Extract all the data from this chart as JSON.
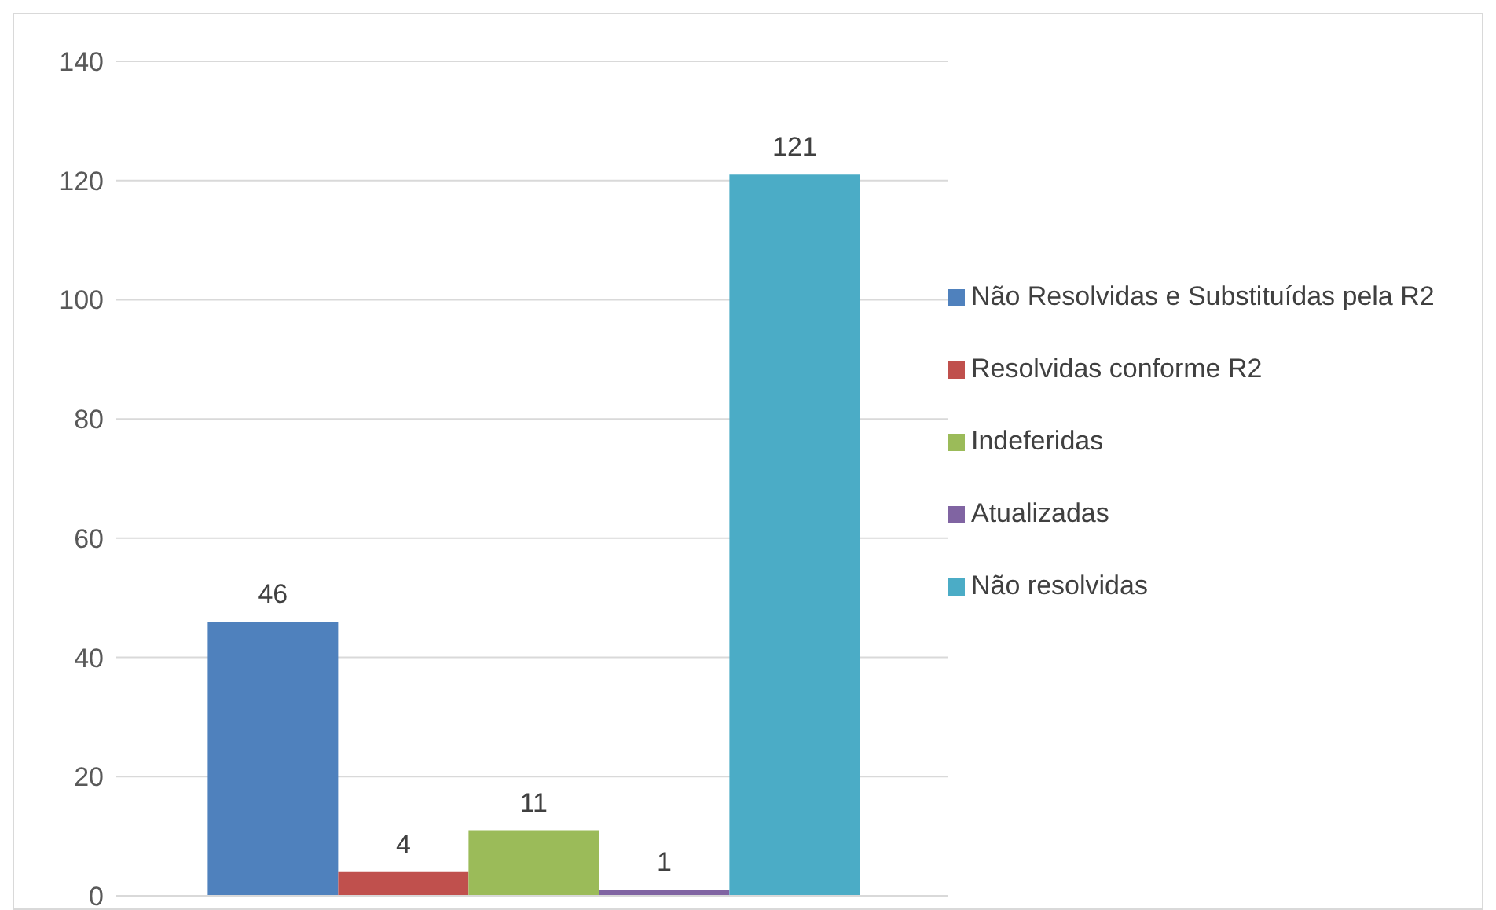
{
  "chart_data": {
    "type": "bar",
    "categories": [
      null
    ],
    "series": [
      {
        "name": "Não Resolvidas e Substituídas pela R2",
        "color": "#4f81bd",
        "values": [
          46
        ]
      },
      {
        "name": "Resolvidas conforme R2",
        "color": "#c0504d",
        "values": [
          4
        ]
      },
      {
        "name": "Indeferidas",
        "color": "#9bbb59",
        "values": [
          11
        ]
      },
      {
        "name": "Atualizadas",
        "color": "#8064a2",
        "values": [
          1
        ]
      },
      {
        "name": "Não resolvidas",
        "color": "#4bacc6",
        "values": [
          121
        ]
      }
    ],
    "ylim": [
      0,
      140
    ],
    "yticks": [
      0,
      20,
      40,
      60,
      80,
      100,
      120,
      140
    ],
    "grid": "y",
    "legend": "right",
    "data_labels": true
  }
}
